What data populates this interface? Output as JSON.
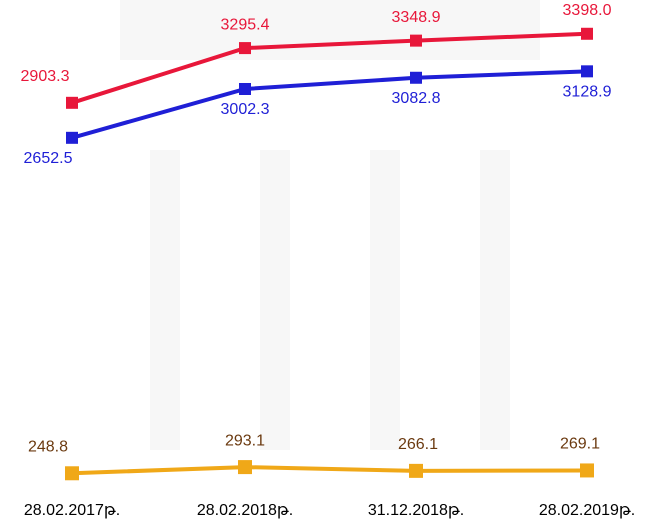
{
  "chart_data": {
    "type": "line",
    "categories": [
      "28.02.2017թ.",
      "28.02.2018թ.",
      "31.12.2018թ.",
      "28.02.2019թ."
    ],
    "series": [
      {
        "color": "#e8173a",
        "label_color": "#e8173a",
        "values": [
          2903.3,
          3295.4,
          3348.9,
          3398.0
        ],
        "value_labels": [
          "2903.3",
          "3295.4",
          "3348.9",
          "3398.0"
        ]
      },
      {
        "color": "#1f1fd6",
        "label_color": "#1f1fd6",
        "values": [
          2652.5,
          3002.3,
          3082.8,
          3128.9
        ],
        "value_labels": [
          "2652.5",
          "3002.3",
          "3082.8",
          "3128.9"
        ]
      },
      {
        "color": "#f0a818",
        "label_color": "#6b3a10",
        "values": [
          248.8,
          293.1,
          266.1,
          269.1
        ],
        "value_labels": [
          "248.8",
          "293.1",
          "266.1",
          "269.1"
        ]
      }
    ],
    "ylim": [
      0,
      3640
    ]
  }
}
